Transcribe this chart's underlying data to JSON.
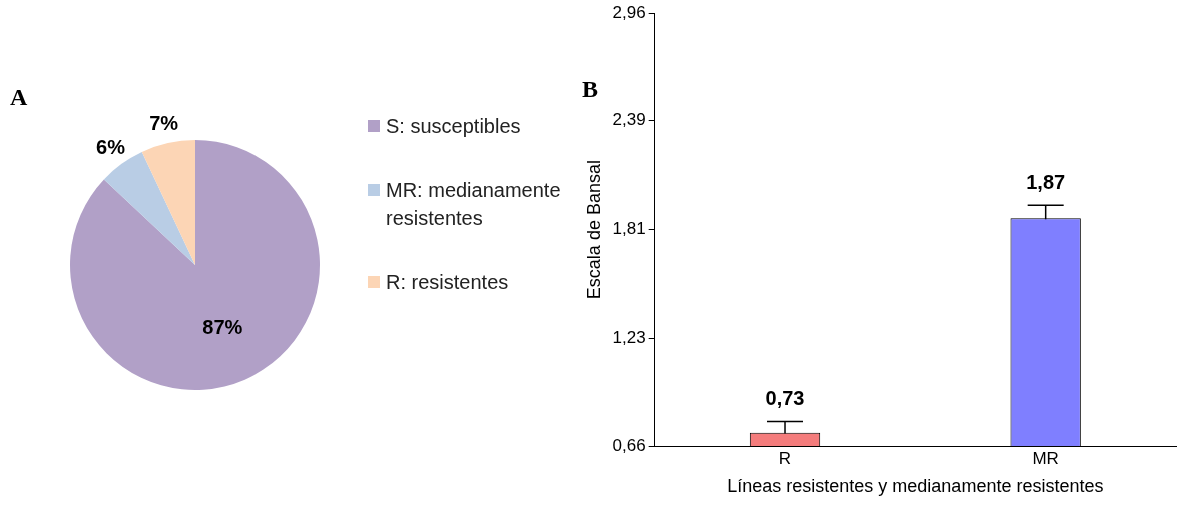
{
  "chart_data": [
    {
      "type": "pie",
      "annotations": [
        "A"
      ],
      "categories": [
        "S: susceptibles",
        "MR: medianamente resistentes",
        "R: resistentes"
      ],
      "values": [
        87,
        6,
        7
      ],
      "colors": [
        "#b1a0c7",
        "#b9cde5",
        "#fcd5b5"
      ],
      "value_labels": [
        "87%",
        "6%",
        "7%"
      ],
      "legend": "right"
    },
    {
      "type": "bar",
      "annotations": [
        "B"
      ],
      "ylabel": "Escala de Bansal",
      "xlabel": "Líneas resistentes y medianamente resistentes",
      "categories": [
        "R",
        "MR"
      ],
      "values": [
        0.73,
        1.87
      ],
      "colors": [
        "#f47c7c",
        "#7f7fff"
      ],
      "errors": [
        0.06,
        0.07
      ],
      "value_labels": [
        "0,73",
        "1,87"
      ],
      "ylim": [
        0.66,
        2.96
      ],
      "yticks": [
        {
          "value": 0.66,
          "label": "0,66"
        },
        {
          "value": 1.23,
          "label": "1,23"
        },
        {
          "value": 1.81,
          "label": "1,81"
        },
        {
          "value": 2.39,
          "label": "2,39"
        },
        {
          "value": 2.96,
          "label": "2,96"
        }
      ],
      "grid": false
    }
  ]
}
